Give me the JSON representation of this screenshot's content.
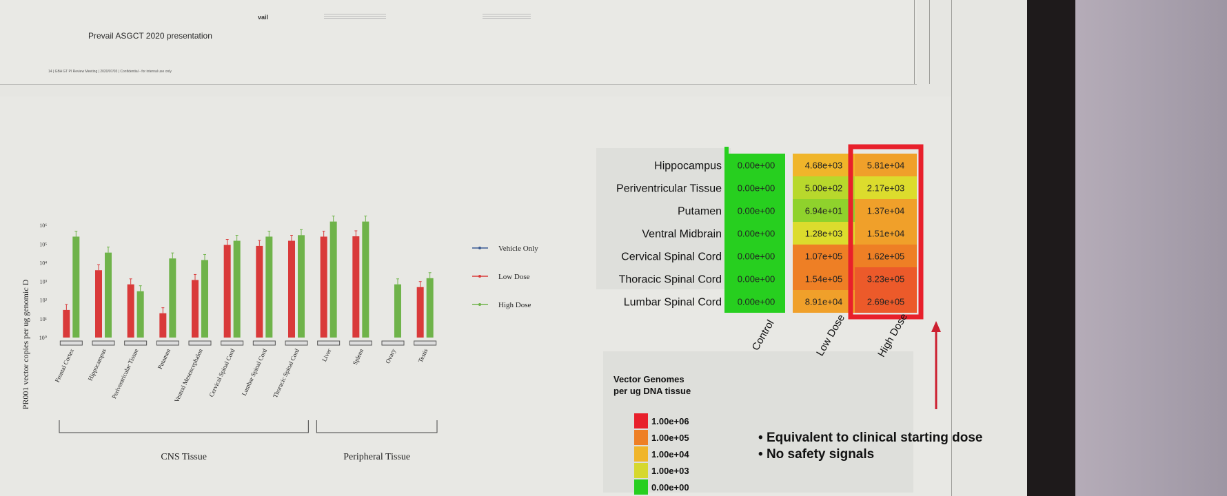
{
  "previous_slide": {
    "title": "Prevail ASGCT 2020 presentation",
    "footer": "14 | GBA GT PI Review Meeting | 2020/07/03 | Confidential - for internal use only",
    "logo": "vail"
  },
  "bullets": [
    "Equivalent to clinical starting dose",
    "No safety signals"
  ],
  "chart_data": [
    {
      "type": "bar",
      "title": "",
      "ylabel": "PR001 vector copies per ug genomic D",
      "yscale": "log",
      "ylim": [
        1,
        10000000
      ],
      "ytick_labels": [
        "10⁰",
        "10¹",
        "10²",
        "10³",
        "10⁴",
        "10⁵",
        "10⁶"
      ],
      "categories": [
        "Frontal Cortex",
        "Hippocampus",
        "Periventricular Tissue",
        "Putamen",
        "Ventral Mesencephalon",
        "Cervical Spinal Cord",
        "Lumbar Spinal Cord",
        "Thoracic Spinal Cord",
        "Liver",
        "Spleen",
        "Ovary",
        "Testis"
      ],
      "groups": [
        {
          "label": "CNS Tissue",
          "categories": [
            0,
            7
          ]
        },
        {
          "label": "Peripheral Tissue",
          "categories": [
            8,
            11
          ]
        }
      ],
      "legend": {
        "placement": "right"
      },
      "series": [
        {
          "name": "Vehicle Only",
          "color": "#3b5b93",
          "values": [
            0,
            0,
            0,
            0,
            0,
            0,
            0,
            0,
            0,
            0,
            0,
            0
          ]
        },
        {
          "name": "Low Dose",
          "color": "#d93a3a",
          "values": [
            30,
            4000,
            700,
            20,
            1200,
            90000,
            80000,
            150000,
            250000,
            260000,
            0,
            500
          ]
        },
        {
          "name": "High Dose",
          "color": "#6fb34a",
          "values": [
            250000,
            35000,
            300,
            17000,
            14000,
            150000,
            250000,
            300000,
            1600000,
            1600000,
            700,
            1500
          ]
        }
      ]
    },
    {
      "type": "heatmap",
      "title": "",
      "rows": [
        "Hippocampus",
        "Periventricular Tissue",
        "Putamen",
        "Ventral Midbrain",
        "Cervical Spinal Cord",
        "Thoracic Spinal Cord",
        "Lumbar Spinal Cord"
      ],
      "columns": [
        "Control",
        "Low Dose",
        "High Dose"
      ],
      "values": [
        [
          "0.00e+00",
          "4.68e+03",
          "5.81e+04"
        ],
        [
          "0.00e+00",
          "5.00e+02",
          "2.17e+03"
        ],
        [
          "0.00e+00",
          "6.94e+01",
          "1.37e+04"
        ],
        [
          "0.00e+00",
          "1.28e+03",
          "1.51e+04"
        ],
        [
          "0.00e+00",
          "1.07e+05",
          "1.62e+05"
        ],
        [
          "0.00e+00",
          "1.54e+05",
          "3.23e+05"
        ],
        [
          "0.00e+00",
          "8.91e+04",
          "2.69e+05"
        ]
      ],
      "highlight_column": "High Dose",
      "legend": {
        "title": [
          "Vector Genomes",
          "per ug DNA tissue"
        ],
        "entries": [
          {
            "label": "1.00e+06",
            "color": "#e8202b"
          },
          {
            "label": "1.00e+05",
            "color": "#ee7f25"
          },
          {
            "label": "1.00e+04",
            "color": "#f0b52a"
          },
          {
            "label": "1.00e+03",
            "color": "#d6d82e"
          },
          {
            "label": "0.00e+00",
            "color": "#27cf1f"
          }
        ]
      }
    }
  ]
}
